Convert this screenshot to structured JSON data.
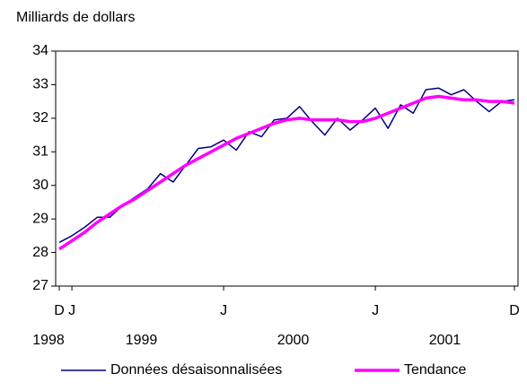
{
  "chart_data": {
    "type": "line",
    "y_axis_label": "Milliards de dollars",
    "categories": [
      "D",
      "J",
      null,
      null,
      null,
      null,
      null,
      null,
      null,
      null,
      null,
      null,
      null,
      "J",
      null,
      null,
      null,
      null,
      null,
      null,
      null,
      null,
      null,
      null,
      null,
      "J",
      null,
      null,
      null,
      null,
      null,
      null,
      null,
      null,
      null,
      null,
      "D"
    ],
    "year_labels": [
      "1998",
      "1999",
      "2000",
      "2001"
    ],
    "ylim": [
      27,
      34
    ],
    "yticks": [
      27,
      28,
      29,
      30,
      31,
      32,
      33,
      34
    ],
    "legend": "bottom",
    "series": [
      {
        "name": "Données désaisonnalisées",
        "color": "#000080",
        "values": [
          28.3,
          28.5,
          28.75,
          29.05,
          29.05,
          29.4,
          29.65,
          29.9,
          30.35,
          30.1,
          30.6,
          31.1,
          31.15,
          31.35,
          31.05,
          31.6,
          31.45,
          31.95,
          32.0,
          32.35,
          31.9,
          31.5,
          32.0,
          31.65,
          31.95,
          32.3,
          31.7,
          32.4,
          32.15,
          32.85,
          32.9,
          32.7,
          32.85,
          32.5,
          32.2,
          32.5,
          32.55
        ]
      },
      {
        "name": "Tendance",
        "color": "#ff00ff",
        "values": [
          28.1,
          28.35,
          28.6,
          28.9,
          29.15,
          29.4,
          29.6,
          29.85,
          30.1,
          30.35,
          30.6,
          30.8,
          31.0,
          31.2,
          31.4,
          31.55,
          31.7,
          31.85,
          31.95,
          32.0,
          31.95,
          31.95,
          31.95,
          31.9,
          31.9,
          32.0,
          32.15,
          32.3,
          32.45,
          32.6,
          32.65,
          32.6,
          32.55,
          32.55,
          32.5,
          32.5,
          32.45
        ]
      }
    ]
  }
}
